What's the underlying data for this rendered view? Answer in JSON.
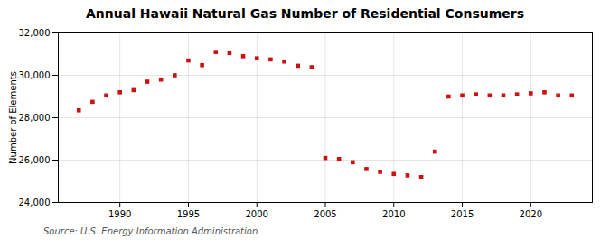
{
  "chart_data": {
    "type": "scatter",
    "title": "Annual Hawaii Natural Gas Number of Residential Consumers",
    "ylabel": "Number of Elements",
    "source": "Source: U.S. Energy Information Administration",
    "x": [
      1987,
      1988,
      1989,
      1990,
      1991,
      1992,
      1993,
      1994,
      1995,
      1996,
      1997,
      1998,
      1999,
      2000,
      2001,
      2002,
      2003,
      2004,
      2005,
      2006,
      2007,
      2008,
      2009,
      2010,
      2011,
      2012,
      2013,
      2014,
      2015,
      2016,
      2017,
      2018,
      2019,
      2020,
      2021,
      2022,
      2023
    ],
    "values": [
      28350,
      28750,
      29050,
      29200,
      29300,
      29700,
      29800,
      30000,
      30700,
      30480,
      31100,
      31050,
      30900,
      30800,
      30750,
      30650,
      30450,
      30380,
      26100,
      26050,
      25900,
      25580,
      25450,
      25350,
      25280,
      25200,
      26400,
      29000,
      29050,
      29100,
      29050,
      29050,
      29100,
      29150,
      29200,
      29050,
      29050
    ],
    "color": "#cc1111",
    "marker": "square",
    "xlim": [
      1985.5,
      2024.5
    ],
    "xticks": [
      1990,
      1995,
      2000,
      2005,
      2010,
      2015,
      2020
    ],
    "ylim": [
      24000,
      32000
    ],
    "yticks": [
      {
        "value": 24000,
        "label": "24,000"
      },
      {
        "value": 26000,
        "label": "26,000"
      },
      {
        "value": 28000,
        "label": "28,000"
      },
      {
        "value": 30000,
        "label": "30,000"
      },
      {
        "value": 32000,
        "label": "32,000"
      }
    ],
    "grid": true
  }
}
